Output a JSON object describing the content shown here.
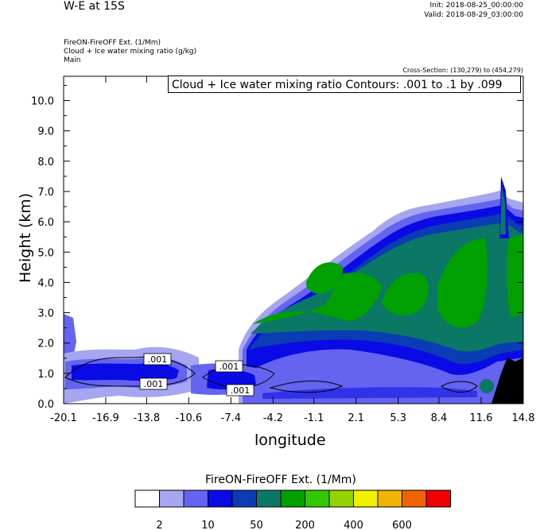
{
  "header": {
    "title": "W-E at 15S",
    "init": "Init: 2018-08-25_00:00:00",
    "valid": "Valid: 2018-08-29_03:00:00",
    "var_line1": "FireON-FireOFF Ext.   (1/Mm)",
    "var_line2": "Cloud + Ice water mixing ratio   (g/kg)",
    "var_line3": "Main",
    "cross_section": "Cross-Section: (130,279) to (454,279)",
    "contour_info": "Cloud + Ice water mixing ratio Contours: .001 to .1 by .099"
  },
  "chart_data": {
    "type": "heatmap",
    "xlabel": "longitude",
    "ylabel": "Height (km)",
    "xlim": [
      -20.1,
      14.8
    ],
    "ylim": [
      0.0,
      10.8
    ],
    "x_ticks": [
      "-20.1",
      "-16.9",
      "-13.8",
      "-10.6",
      "-7.4",
      "-4.2",
      "-1.1",
      "2.1",
      "5.3",
      "8.4",
      "11.6",
      "14.8"
    ],
    "y_ticks": [
      "0.0",
      "1.0",
      "2.0",
      "3.0",
      "4.0",
      "5.0",
      "6.0",
      "7.0",
      "8.0",
      "9.0",
      "10.0"
    ],
    "contour_labels": [
      ".001",
      ".001",
      ".001",
      ".001"
    ],
    "colorbar": {
      "title": "FireON-FireOFF Ext.  (1/Mm)",
      "colors": [
        "#ffffff",
        "#a6a6f0",
        "#6464f0",
        "#0a0ae6",
        "#0a3cb4",
        "#0a7864",
        "#00a000",
        "#32c800",
        "#96d200",
        "#f0f000",
        "#f0b400",
        "#f06400",
        "#f00000"
      ],
      "labels": [
        "2",
        "10",
        "50",
        "200",
        "400",
        "600"
      ]
    }
  }
}
